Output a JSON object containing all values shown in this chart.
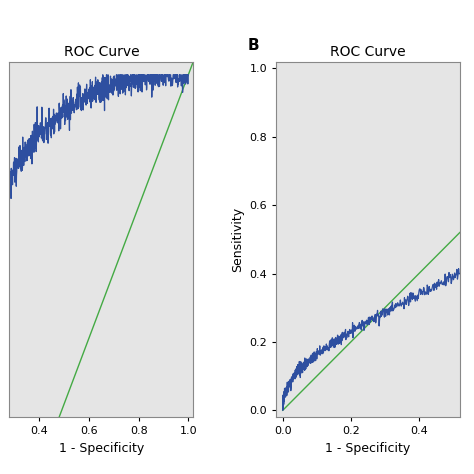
{
  "title_A": "ROC Curve",
  "title_B": "ROC Curve",
  "label_B": "B",
  "xlabel": "1 - Specificity",
  "ylabel": "Sensitivity",
  "bg_color": "#e5e5e5",
  "curve_color": "#2e4fa0",
  "diag_color": "#44aa44",
  "fig_bg": "#ffffff",
  "xlim_A": [
    0.28,
    1.02
  ],
  "ylim_A": [
    0.48,
    1.02
  ],
  "xlim_B": [
    -0.02,
    0.52
  ],
  "ylim_B": [
    -0.02,
    1.02
  ],
  "xticks_A": [
    0.4,
    0.6,
    0.8,
    1.0
  ],
  "yticks_A": [],
  "xticks_B": [
    0.0,
    0.2,
    0.4
  ],
  "yticks_B": [
    0.0,
    0.2,
    0.4,
    0.6,
    0.8,
    1.0
  ],
  "tick_labelsize": 8,
  "axis_labelsize": 9,
  "title_fontsize": 10
}
